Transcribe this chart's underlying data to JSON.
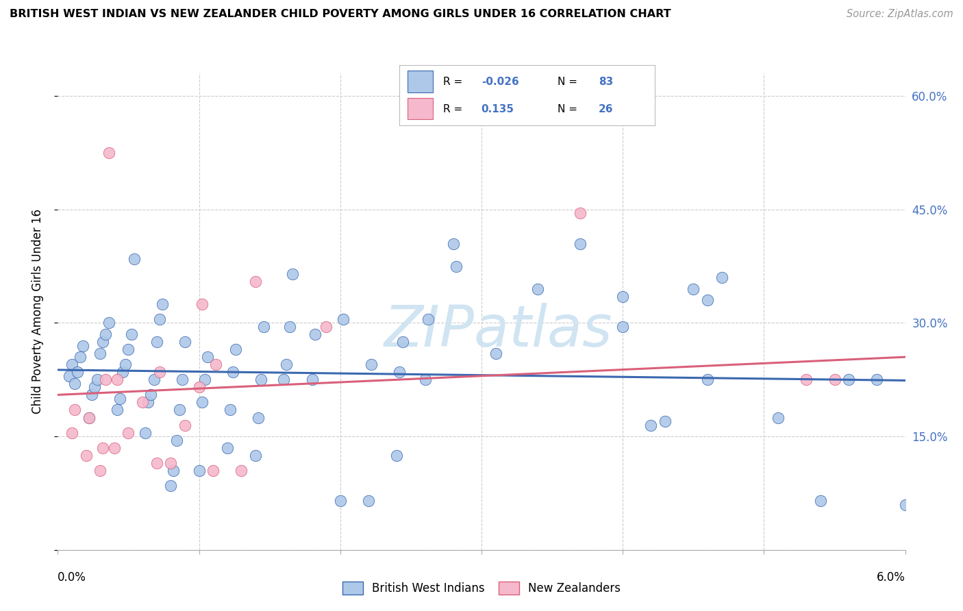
{
  "title": "BRITISH WEST INDIAN VS NEW ZEALANDER CHILD POVERTY AMONG GIRLS UNDER 16 CORRELATION CHART",
  "source": "Source: ZipAtlas.com",
  "ylabel": "Child Poverty Among Girls Under 16",
  "color_blue": "#adc8e8",
  "color_blue_line": "#3b68b0",
  "color_pink": "#f5b8cc",
  "color_pink_line": "#d9607a",
  "color_blue_text": "#4472c4",
  "watermark_color": "#d0e4f2",
  "grid_color": "#cccccc",
  "xlim": [
    0.0,
    0.06
  ],
  "ylim": [
    0.0,
    0.63
  ],
  "y_ticks": [
    0.0,
    0.15,
    0.3,
    0.45,
    0.6
  ],
  "y_right_labels": [
    "",
    "15.0%",
    "30.0%",
    "45.0%",
    "60.0%"
  ],
  "blue_scatter_x": [
    0.0008,
    0.001,
    0.0012,
    0.0014,
    0.0016,
    0.0018,
    0.0022,
    0.0024,
    0.0026,
    0.0028,
    0.003,
    0.0032,
    0.0034,
    0.0036,
    0.0042,
    0.0044,
    0.0046,
    0.0048,
    0.005,
    0.0052,
    0.0054,
    0.0062,
    0.0064,
    0.0066,
    0.0068,
    0.007,
    0.0072,
    0.0074,
    0.008,
    0.0082,
    0.0084,
    0.0086,
    0.0088,
    0.009,
    0.01,
    0.0102,
    0.0104,
    0.0106,
    0.012,
    0.0122,
    0.0124,
    0.0126,
    0.014,
    0.0142,
    0.0144,
    0.0146,
    0.016,
    0.0162,
    0.0164,
    0.0166,
    0.018,
    0.0182,
    0.02,
    0.0202,
    0.022,
    0.0222,
    0.024,
    0.0242,
    0.0244,
    0.026,
    0.0262,
    0.028,
    0.0282,
    0.031,
    0.034,
    0.037,
    0.04,
    0.043,
    0.046,
    0.051,
    0.054,
    0.056,
    0.058,
    0.06,
    0.04,
    0.042,
    0.045,
    0.046,
    0.047
  ],
  "blue_scatter_y": [
    0.23,
    0.245,
    0.22,
    0.235,
    0.255,
    0.27,
    0.175,
    0.205,
    0.215,
    0.225,
    0.26,
    0.275,
    0.285,
    0.3,
    0.185,
    0.2,
    0.235,
    0.245,
    0.265,
    0.285,
    0.385,
    0.155,
    0.195,
    0.205,
    0.225,
    0.275,
    0.305,
    0.325,
    0.085,
    0.105,
    0.145,
    0.185,
    0.225,
    0.275,
    0.105,
    0.195,
    0.225,
    0.255,
    0.135,
    0.185,
    0.235,
    0.265,
    0.125,
    0.175,
    0.225,
    0.295,
    0.225,
    0.245,
    0.295,
    0.365,
    0.225,
    0.285,
    0.065,
    0.305,
    0.065,
    0.245,
    0.125,
    0.235,
    0.275,
    0.225,
    0.305,
    0.405,
    0.375,
    0.26,
    0.345,
    0.405,
    0.295,
    0.17,
    0.225,
    0.175,
    0.065,
    0.225,
    0.225,
    0.06,
    0.335,
    0.165,
    0.345,
    0.33,
    0.36
  ],
  "pink_scatter_x": [
    0.001,
    0.0012,
    0.002,
    0.0022,
    0.003,
    0.0032,
    0.0034,
    0.0036,
    0.004,
    0.0042,
    0.005,
    0.006,
    0.007,
    0.0072,
    0.008,
    0.009,
    0.01,
    0.0102,
    0.011,
    0.0112,
    0.013,
    0.014,
    0.019,
    0.037,
    0.053,
    0.055
  ],
  "pink_scatter_y": [
    0.155,
    0.185,
    0.125,
    0.175,
    0.105,
    0.135,
    0.225,
    0.525,
    0.135,
    0.225,
    0.155,
    0.195,
    0.115,
    0.235,
    0.115,
    0.165,
    0.215,
    0.325,
    0.105,
    0.245,
    0.105,
    0.355,
    0.295,
    0.445,
    0.225,
    0.225
  ],
  "blue_line_y0": 0.238,
  "blue_line_y1": 0.224,
  "pink_line_y0": 0.205,
  "pink_line_y1": 0.255
}
